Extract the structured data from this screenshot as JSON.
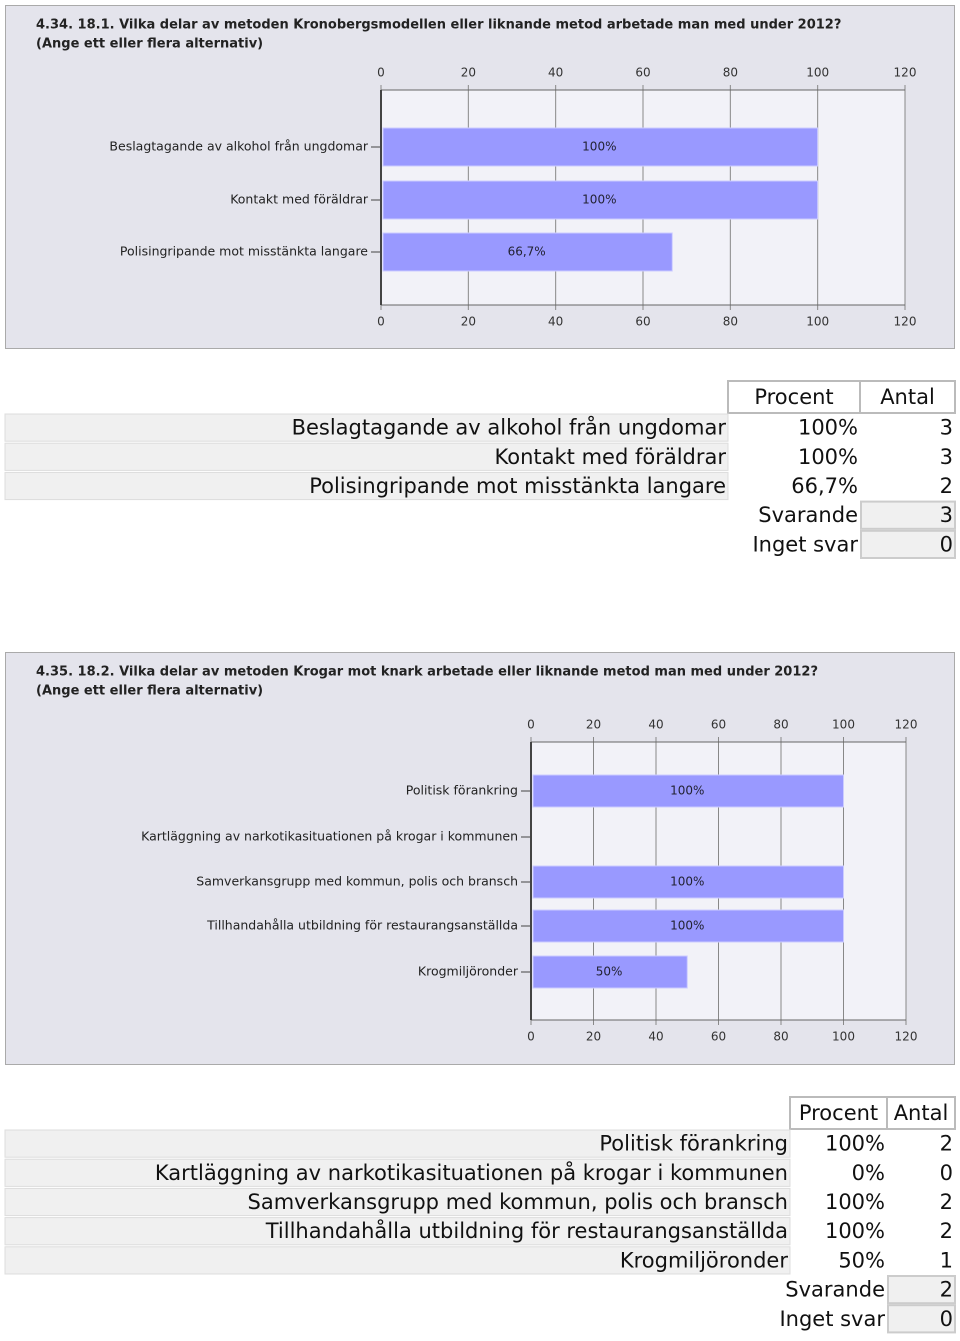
{
  "chart_data": [
    {
      "type": "bar",
      "orientation": "horizontal",
      "title": "4.34. 18.1. Vilka delar av metoden Kronobergsmodellen eller liknande metod arbetade man med under 2012?",
      "subtitle": "(Ange ett eller flera alternativ)",
      "categories": [
        "Beslagtagande av alkohol från ungdomar",
        "Kontakt med föräldrar",
        "Polisingripande mot misstänkta langare"
      ],
      "values": [
        100,
        100,
        66.7
      ],
      "value_labels": [
        "100%",
        "100%",
        "66,7%"
      ],
      "color": "#9999ff",
      "xlim": [
        0,
        120
      ],
      "xticks": [
        0,
        20,
        40,
        60,
        80,
        100,
        120
      ],
      "grid": true
    },
    {
      "type": "bar",
      "orientation": "horizontal",
      "title": "4.35. 18.2. Vilka delar av metoden Krogar mot knark arbetade eller liknande metod man med under 2012?",
      "subtitle": "(Ange ett eller flera alternativ)",
      "categories": [
        "Politisk förankring",
        "Kartläggning av narkotikasituationen på krogar i kommunen",
        "Samverkansgrupp med kommun, polis och bransch",
        "Tillhandahålla utbildning för restaurangsanställda",
        "Krogmiljöronder"
      ],
      "values": [
        100,
        0,
        100,
        100,
        50
      ],
      "value_labels": [
        "100%",
        null,
        "100%",
        "100%",
        "50%"
      ],
      "color": "#9999ff",
      "xlim": [
        0,
        120
      ],
      "xticks": [
        0,
        20,
        40,
        60,
        80,
        100,
        120
      ],
      "grid": true
    }
  ],
  "tables": [
    {
      "columns": [
        "Procent",
        "Antal"
      ],
      "rows": [
        [
          "Beslagtagande av alkohol från ungdomar",
          "100%",
          3
        ],
        [
          "Kontakt med föräldrar",
          "100%",
          3
        ],
        [
          "Polisingripande mot misstänkta langare",
          "66,7%",
          2
        ]
      ],
      "summary": [
        [
          "Svarande",
          3
        ],
        [
          "Inget svar",
          0
        ]
      ]
    },
    {
      "columns": [
        "Procent",
        "Antal"
      ],
      "rows": [
        [
          "Politisk förankring",
          "100%",
          2
        ],
        [
          "Kartläggning av narkotikasituationen på krogar i kommunen",
          "0%",
          0
        ],
        [
          "Samverkansgrupp med kommun, polis och bransch",
          "100%",
          2
        ],
        [
          "Tillhandahålla utbildning för restaurangsanställda",
          "100%",
          2
        ],
        [
          "Krogmiljöronder",
          "50%",
          1
        ]
      ],
      "summary": [
        [
          "Svarande",
          2
        ],
        [
          "Inget svar",
          0
        ]
      ]
    }
  ]
}
